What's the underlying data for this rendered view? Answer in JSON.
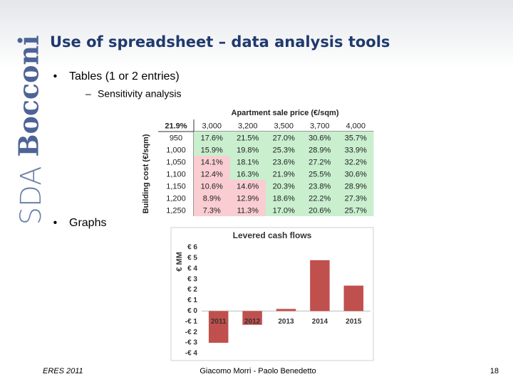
{
  "logo": {
    "light": "SDA",
    "bold": "Bocconi"
  },
  "header": {
    "title": "Use of spreadsheet – data analysis tools"
  },
  "bullets": [
    {
      "text": "Tables (1 or 2 entries)",
      "sub": "Sensitivity analysis"
    },
    {
      "text": "Graphs"
    }
  ],
  "table": {
    "corner": "21.9%",
    "column_header": "Apartment sale price (€/sqm)",
    "row_header": "Building cost (€/sqm)",
    "columns": [
      "3,000",
      "3,200",
      "3,500",
      "3,700",
      "4,000"
    ],
    "rows": [
      [
        "950",
        "17.6%",
        "21.5%",
        "27.0%",
        "30.6%",
        "35.7%"
      ],
      [
        "1,000",
        "15.9%",
        "19.8%",
        "25.3%",
        "28.9%",
        "33.9%"
      ],
      [
        "1,050",
        "14.1%",
        "18.1%",
        "23.6%",
        "27.2%",
        "32.2%"
      ],
      [
        "1,100",
        "12.4%",
        "16.3%",
        "21.9%",
        "25.5%",
        "30.6%"
      ],
      [
        "1,150",
        "10.6%",
        "14.6%",
        "20.3%",
        "23.8%",
        "28.9%"
      ],
      [
        "1,200",
        "8.9%",
        "12.9%",
        "18.6%",
        "22.2%",
        "27.3%"
      ],
      [
        "1,250",
        "7.3%",
        "11.3%",
        "17.0%",
        "20.6%",
        "25.7%"
      ]
    ],
    "conditional_format": {
      "below": 15,
      "color_low": "#f9cdd2",
      "color_high": "#c9efcf"
    }
  },
  "chart_data": {
    "type": "bar",
    "title": "Levered cash flows",
    "y_label": "€ MM",
    "categories": [
      "2011",
      "2012",
      "2013",
      "2014",
      "2015"
    ],
    "values": [
      -3.0,
      -1.3,
      0.2,
      4.8,
      2.4
    ],
    "color": "#c0504d",
    "ylim": [
      -4,
      6
    ],
    "yticks": [
      {
        "value": 6,
        "label": "€ 6"
      },
      {
        "value": 5,
        "label": "€ 5"
      },
      {
        "value": 4,
        "label": "€ 4"
      },
      {
        "value": 3,
        "label": "€ 3"
      },
      {
        "value": 2,
        "label": "€ 2"
      },
      {
        "value": 1,
        "label": "€ 1"
      },
      {
        "value": 0,
        "label": "€ 0"
      },
      {
        "value": -1,
        "label": "-€ 1"
      },
      {
        "value": -2,
        "label": "-€ 2"
      },
      {
        "value": -3,
        "label": "-€ 3"
      },
      {
        "value": -4,
        "label": "-€ 4"
      }
    ],
    "grid": false
  },
  "footer": {
    "left": "ERES 2011",
    "center": "Giacomo Morri - Paolo Benedetto",
    "page": "18"
  }
}
